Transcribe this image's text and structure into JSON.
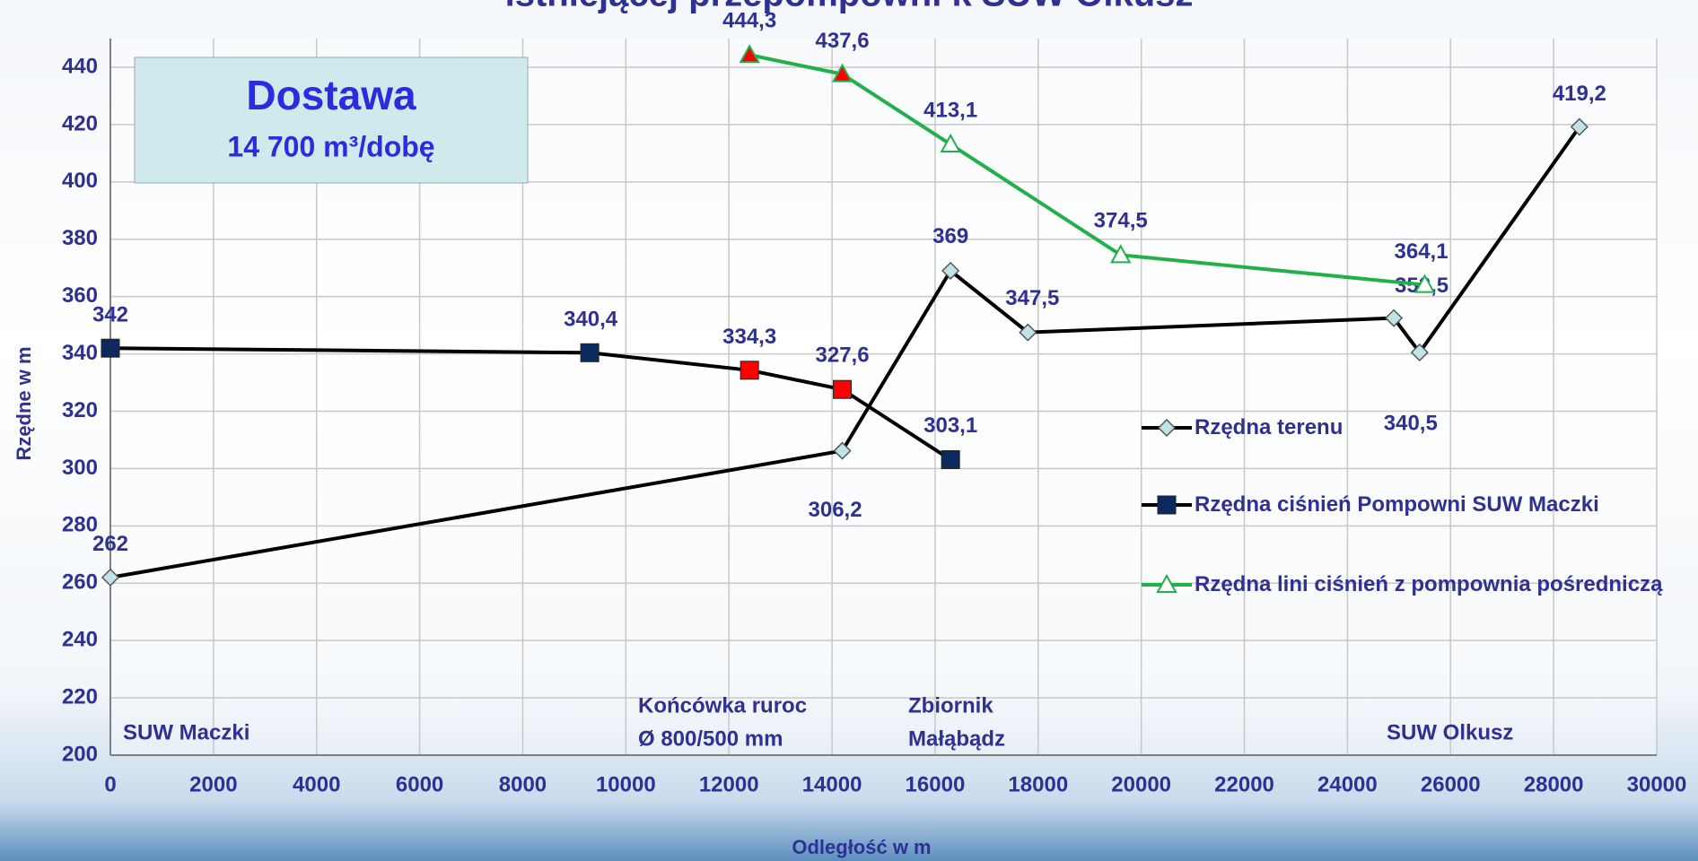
{
  "chart_data": {
    "type": "line",
    "title": "istniejącej przepompowni k SUW Olkusz",
    "xlabel": "Odległość w m",
    "ylabel": "Rzędne w m",
    "xlim": [
      0,
      30000
    ],
    "xticks": [
      0,
      2000,
      4000,
      6000,
      8000,
      10000,
      12000,
      14000,
      16000,
      18000,
      20000,
      22000,
      24000,
      26000,
      28000,
      30000
    ],
    "ylim": [
      200,
      450
    ],
    "yticks": [
      200,
      220,
      240,
      260,
      280,
      300,
      320,
      340,
      360,
      380,
      400,
      420,
      440
    ],
    "grid": true,
    "legend": "right",
    "series": [
      {
        "name": "Rzędna terenu",
        "color": "#000000",
        "marker": "diamond",
        "marker_colors": [
          "#bfe3e8",
          "#bfe3e8",
          "#bfe3e8",
          "#bfe3e8",
          "#bfe3e8",
          "#bfe3e8",
          "#bfe3e8"
        ],
        "x": [
          0,
          14200,
          16300,
          17800,
          24900,
          25400,
          28500
        ],
        "values": [
          262,
          306.2,
          369,
          347.5,
          352.5,
          340.5,
          419.2
        ],
        "value_labels": [
          "262",
          "306,2",
          "369",
          "347,5",
          "352,5",
          "340,5",
          "419,2"
        ]
      },
      {
        "name": "Rzędna ciśnień Pompowni SUW Maczki",
        "color": "#000000",
        "marker": "square",
        "marker_colors": [
          "#0d2a5e",
          "#0d2a5e",
          "#ff0000",
          "#ff0000",
          "#0d2a5e"
        ],
        "x": [
          0,
          9300,
          12400,
          14200,
          16300
        ],
        "values": [
          342,
          340.4,
          334.3,
          327.6,
          303.1
        ],
        "value_labels": [
          "342",
          "340,4",
          "334,3",
          "327,6",
          "303,1"
        ]
      },
      {
        "name": "Rzędna lini ciśnień z pompownia pośredniczą",
        "color": "#22b04a",
        "marker": "triangle",
        "marker_colors": [
          "#ff0000",
          "#ff0000",
          "#ffffff",
          "#ffffff",
          "#ffffff"
        ],
        "x": [
          12400,
          14200,
          16300,
          19600,
          25500
        ],
        "values": [
          444.3,
          437.6,
          413.1,
          374.5,
          364.1
        ],
        "value_labels": [
          "444,3",
          "437,6",
          "413,1",
          "374,5",
          "364,1"
        ]
      }
    ],
    "annotations": {
      "box": [
        "Dostawa",
        "14 700 m³/dobę"
      ],
      "places": [
        [
          "SUW Maczki"
        ],
        [
          "Końcówka ruroc",
          "Ø 800/500 mm"
        ],
        [
          "Zbiornik",
          "Małąbądz"
        ],
        [
          "SUW Olkusz"
        ]
      ]
    }
  }
}
